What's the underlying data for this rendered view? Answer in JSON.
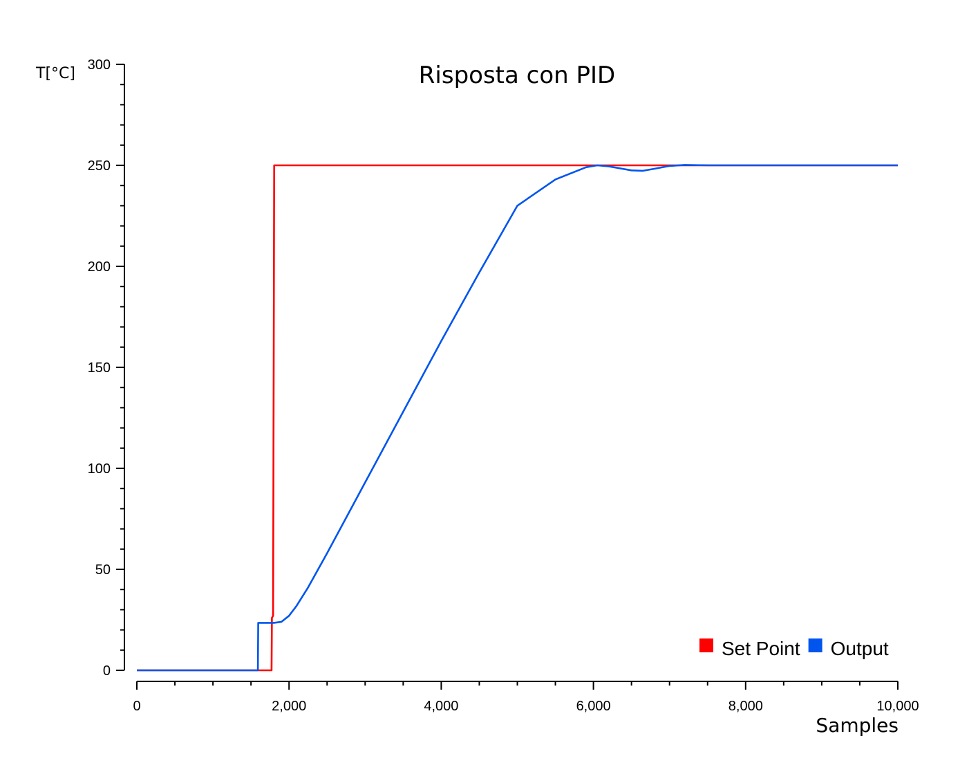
{
  "chart_data": {
    "type": "line",
    "title": "Risposta con PID",
    "xlabel": "Samples",
    "ylabel": "T[°C]",
    "xlim": [
      0,
      10000
    ],
    "ylim": [
      0,
      300
    ],
    "x_ticks": [
      0,
      2000,
      4000,
      6000,
      8000,
      10000
    ],
    "x_tick_labels": [
      "0",
      "2,000",
      "4,000",
      "6,000",
      "8,000",
      "10,000"
    ],
    "y_ticks": [
      0,
      50,
      100,
      150,
      200,
      250,
      300
    ],
    "y_tick_labels": [
      "0",
      "50",
      "100",
      "150",
      "200",
      "250",
      "300"
    ],
    "legend_position": "bottom-right",
    "series": [
      {
        "name": "Set Point",
        "color": "#ff0000",
        "points": [
          [
            0,
            0
          ],
          [
            1770,
            0
          ],
          [
            1775,
            26
          ],
          [
            1790,
            27
          ],
          [
            1805,
            250
          ],
          [
            10000,
            250
          ]
        ]
      },
      {
        "name": "Output",
        "color": "#0055ee",
        "points": [
          [
            0,
            0
          ],
          [
            1590,
            0
          ],
          [
            1595,
            23.5
          ],
          [
            1800,
            23.5
          ],
          [
            1900,
            24
          ],
          [
            2000,
            27
          ],
          [
            2100,
            32
          ],
          [
            2250,
            41
          ],
          [
            2500,
            58
          ],
          [
            3000,
            93
          ],
          [
            3500,
            128
          ],
          [
            4000,
            163
          ],
          [
            4500,
            197
          ],
          [
            5000,
            230
          ],
          [
            5500,
            243
          ],
          [
            5900,
            249
          ],
          [
            6050,
            250
          ],
          [
            6200,
            249.5
          ],
          [
            6350,
            248.5
          ],
          [
            6500,
            247.5
          ],
          [
            6650,
            247.3
          ],
          [
            6800,
            248.3
          ],
          [
            7000,
            249.7
          ],
          [
            7200,
            250.2
          ],
          [
            7500,
            250
          ],
          [
            8000,
            250
          ],
          [
            10000,
            250
          ]
        ]
      }
    ]
  }
}
